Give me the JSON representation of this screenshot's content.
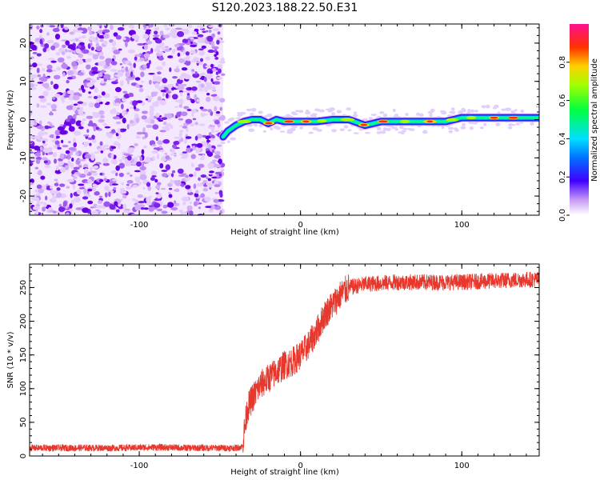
{
  "title": "S120.2023.188.22.50.E31",
  "chart_data": [
    {
      "type": "heatmap",
      "xlabel": "Height of straight line (km)",
      "ylabel": "Frequency (Hz)",
      "xlim": [
        -168,
        148
      ],
      "ylim": [
        -25,
        25
      ],
      "x_ticks": [
        -100,
        0,
        100
      ],
      "y_ticks": [
        -20,
        -10,
        0,
        10,
        20
      ],
      "noise_region_x": [
        -168,
        -48
      ],
      "ridge": {
        "x": [
          -48,
          -45,
          -40,
          -35,
          -30,
          -25,
          -20,
          -15,
          -10,
          -5,
          0,
          10,
          20,
          30,
          40,
          50,
          60,
          70,
          80,
          90,
          100,
          110,
          120,
          130,
          140,
          148
        ],
        "y": [
          -4.5,
          -3,
          -1.5,
          -0.5,
          0,
          0,
          -1,
          0,
          -0.5,
          -0.5,
          -0.5,
          -0.5,
          0,
          0,
          -1.5,
          -0.5,
          -0.5,
          -0.5,
          -0.5,
          -0.5,
          0.5,
          0.5,
          0.5,
          0.5,
          0.5,
          0.5
        ]
      },
      "colorbar": {
        "label": "Normalized spectral amplitude",
        "range": [
          0,
          1
        ],
        "ticks": [
          0.0,
          0.2,
          0.4,
          0.6,
          0.8
        ],
        "tick_labels": [
          "0.0",
          "0.2",
          "0.4",
          "0.6",
          "0.8"
        ]
      },
      "grid": false
    },
    {
      "type": "line",
      "xlabel": "Height of straight line (km)",
      "ylabel": "SNR (10 * v/v)",
      "xlim": [
        -168,
        148
      ],
      "ylim": [
        0,
        285
      ],
      "x_ticks": [
        -100,
        0,
        100
      ],
      "y_ticks": [
        0,
        50,
        100,
        150,
        200,
        250
      ],
      "color": "#e8382d",
      "grid": false,
      "series": [
        {
          "x": [
            -168,
            -150,
            -130,
            -110,
            -90,
            -70,
            -50,
            -40,
            -36,
            -35,
            -33,
            -30,
            -25,
            -20,
            -15,
            -10,
            -5,
            0,
            5,
            10,
            15,
            20,
            25,
            30,
            40,
            60,
            80,
            100,
            120,
            140,
            148
          ],
          "y": [
            12,
            12,
            12,
            12,
            13,
            12,
            12,
            12,
            14,
            35,
            70,
            85,
            105,
            115,
            125,
            135,
            140,
            150,
            165,
            185,
            210,
            225,
            240,
            250,
            255,
            258,
            258,
            258,
            260,
            262,
            262
          ]
        }
      ]
    }
  ]
}
